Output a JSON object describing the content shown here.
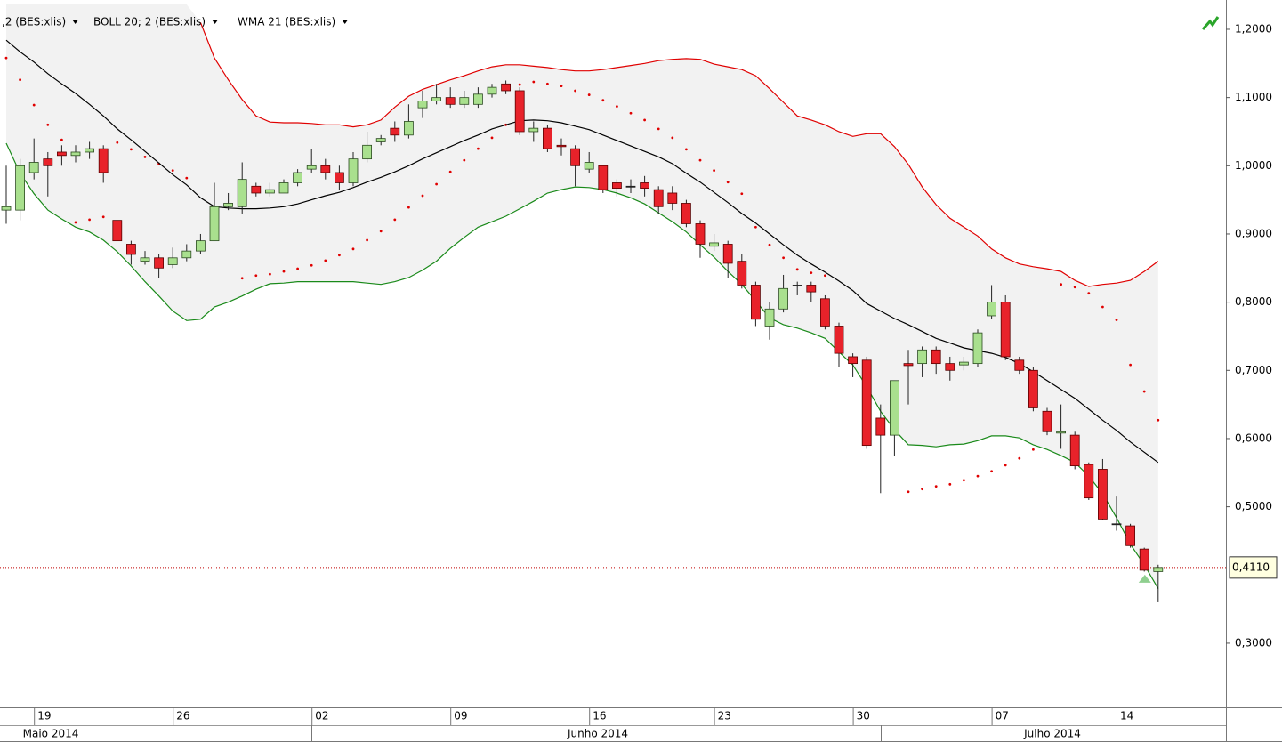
{
  "chart_data": {
    "type": "candlestick",
    "categories": [
      null,
      null,
      "19",
      null,
      null,
      null,
      null,
      null,
      null,
      null,
      null,
      null,
      "26",
      null,
      null,
      null,
      null,
      null,
      null,
      null,
      null,
      null,
      "02",
      null,
      null,
      null,
      null,
      null,
      null,
      null,
      null,
      null,
      "09",
      null,
      null,
      null,
      null,
      null,
      null,
      null,
      null,
      null,
      "16",
      null,
      null,
      null,
      null,
      null,
      null,
      null,
      null,
      "23",
      null,
      null,
      null,
      null,
      null,
      null,
      null,
      null,
      null,
      "30",
      null,
      null,
      null,
      null,
      null,
      null,
      null,
      null,
      null,
      "07",
      null,
      null,
      null,
      null,
      null,
      null,
      null,
      null,
      "14",
      null,
      null,
      null
    ],
    "open": [
      0.935,
      0.935,
      0.99,
      1.01,
      1.02,
      1.015,
      1.02,
      1.025,
      0.92,
      0.885,
      0.86,
      0.865,
      0.855,
      0.865,
      0.875,
      0.89,
      0.94,
      0.94,
      0.97,
      0.96,
      0.96,
      0.975,
      0.995,
      1.0,
      0.99,
      0.975,
      1.01,
      1.035,
      1.055,
      1.045,
      1.085,
      1.095,
      1.1,
      1.09,
      1.09,
      1.105,
      1.12,
      1.11,
      1.05,
      1.055,
      1.03,
      1.025,
      0.995,
      1.0,
      0.975,
      0.97,
      0.975,
      0.965,
      0.96,
      0.945,
      0.915,
      0.882,
      0.885,
      0.86,
      0.825,
      0.765,
      0.79,
      0.825,
      0.825,
      0.805,
      0.765,
      0.72,
      0.715,
      0.63,
      0.605,
      0.71,
      0.71,
      0.73,
      0.71,
      0.708,
      0.71,
      0.78,
      0.8,
      0.715,
      0.7,
      0.64,
      0.608,
      0.605,
      0.562,
      0.555,
      0.475,
      0.472,
      0.438,
      0.405
    ],
    "high": [
      1.0,
      1.01,
      1.04,
      1.02,
      1.03,
      1.03,
      1.035,
      1.03,
      0.92,
      0.89,
      0.875,
      0.87,
      0.88,
      0.885,
      0.9,
      0.975,
      0.96,
      1.005,
      0.975,
      0.975,
      0.98,
      0.995,
      1.025,
      1.01,
      1.0,
      1.02,
      1.05,
      1.045,
      1.065,
      1.09,
      1.11,
      1.12,
      1.115,
      1.11,
      1.115,
      1.12,
      1.125,
      1.115,
      1.065,
      1.06,
      1.04,
      1.03,
      1.02,
      1.0,
      0.98,
      0.98,
      0.985,
      0.97,
      0.97,
      0.95,
      0.92,
      0.9,
      0.89,
      0.87,
      0.83,
      0.8,
      0.84,
      0.83,
      0.83,
      0.81,
      0.77,
      0.725,
      0.72,
      0.65,
      0.685,
      0.73,
      0.735,
      0.735,
      0.72,
      0.72,
      0.76,
      0.825,
      0.81,
      0.72,
      0.705,
      0.645,
      0.65,
      0.61,
      0.565,
      0.57,
      0.515,
      0.475,
      0.44,
      0.415
    ],
    "low": [
      0.915,
      0.92,
      0.98,
      0.955,
      1.0,
      1.005,
      1.01,
      0.975,
      0.89,
      0.855,
      0.855,
      0.835,
      0.85,
      0.86,
      0.87,
      0.89,
      0.935,
      0.93,
      0.955,
      0.955,
      0.96,
      0.97,
      0.99,
      0.98,
      0.965,
      0.97,
      1.005,
      1.03,
      1.035,
      1.04,
      1.07,
      1.09,
      1.085,
      1.085,
      1.085,
      1.1,
      1.105,
      1.045,
      1.035,
      1.02,
      1.015,
      0.97,
      0.99,
      0.96,
      0.955,
      0.96,
      0.955,
      0.93,
      0.935,
      0.91,
      0.865,
      0.875,
      0.835,
      0.82,
      0.765,
      0.745,
      0.785,
      0.81,
      0.8,
      0.76,
      0.705,
      0.69,
      0.585,
      0.52,
      0.575,
      0.65,
      0.69,
      0.695,
      0.685,
      0.7,
      0.705,
      0.775,
      0.715,
      0.695,
      0.64,
      0.605,
      0.585,
      0.555,
      0.51,
      0.48,
      0.465,
      0.44,
      0.405,
      0.36
    ],
    "close": [
      0.94,
      1.0,
      1.005,
      1.0,
      1.015,
      1.02,
      1.025,
      0.99,
      0.89,
      0.87,
      0.865,
      0.85,
      0.865,
      0.875,
      0.89,
      0.94,
      0.945,
      0.98,
      0.96,
      0.965,
      0.975,
      0.99,
      1.0,
      0.99,
      0.975,
      1.01,
      1.03,
      1.04,
      1.045,
      1.065,
      1.095,
      1.1,
      1.09,
      1.1,
      1.105,
      1.115,
      1.11,
      1.05,
      1.055,
      1.025,
      1.028,
      1.0,
      1.005,
      0.965,
      0.967,
      0.97,
      0.967,
      0.94,
      0.945,
      0.915,
      0.885,
      0.887,
      0.857,
      0.825,
      0.775,
      0.79,
      0.82,
      0.825,
      0.815,
      0.765,
      0.725,
      0.71,
      0.59,
      0.605,
      0.685,
      0.707,
      0.73,
      0.71,
      0.7,
      0.712,
      0.755,
      0.8,
      0.72,
      0.7,
      0.645,
      0.61,
      0.61,
      0.56,
      0.513,
      0.482,
      0.475,
      0.443,
      0.407,
      0.411
    ],
    "up_color": "#a9e08e",
    "down_color": "#e8222a",
    "indicators": [
      {
        "name": ",2 (BES:xlis)",
        "label_color": "#e00000",
        "style": "dots",
        "color": "#e00000",
        "values": [
          1.158,
          1.126,
          1.089,
          1.06,
          1.038,
          0.917,
          0.921,
          0.925,
          1.034,
          1.024,
          1.013,
          1.003,
          0.993,
          0.982,
          null,
          null,
          null,
          0.835,
          0.839,
          0.841,
          0.845,
          0.849,
          0.854,
          0.861,
          0.869,
          0.878,
          0.891,
          0.904,
          0.921,
          0.939,
          0.956,
          0.973,
          0.991,
          1.008,
          1.025,
          1.041,
          1.06,
          1.119,
          1.123,
          1.12,
          1.117,
          1.11,
          1.104,
          1.096,
          1.087,
          1.077,
          1.067,
          1.054,
          1.041,
          1.024,
          1.008,
          0.993,
          0.976,
          0.959,
          0.91,
          0.884,
          0.865,
          0.848,
          0.843,
          0.839,
          null,
          null,
          null,
          null,
          null,
          0.522,
          0.526,
          0.53,
          0.533,
          0.539,
          0.545,
          0.552,
          0.561,
          0.571,
          0.584,
          null,
          0.826,
          0.822,
          0.813,
          0.793,
          0.774,
          0.708,
          0.669,
          0.627
        ]
      },
      {
        "name": "BOLL 20; 2 (BES:xlis)",
        "label_color": "#000000",
        "style": "bands",
        "upper_color": "#e00000",
        "lower_color": "#1a8a1a",
        "fill": "#f2f2f2",
        "upper": [
          null,
          null,
          null,
          null,
          null,
          null,
          null,
          null,
          null,
          null,
          null,
          null,
          null,
          null,
          1.21,
          1.158,
          1.126,
          1.097,
          1.073,
          1.064,
          1.063,
          1.063,
          1.062,
          1.06,
          1.06,
          1.057,
          1.06,
          1.067,
          1.086,
          1.102,
          1.112,
          1.119,
          1.126,
          1.132,
          1.139,
          1.145,
          1.148,
          1.148,
          1.146,
          1.144,
          1.141,
          1.139,
          1.139,
          1.141,
          1.144,
          1.147,
          1.15,
          1.154,
          1.156,
          1.157,
          1.156,
          1.149,
          1.145,
          1.141,
          1.132,
          1.113,
          1.093,
          1.073,
          1.067,
          1.06,
          1.05,
          1.043,
          1.047,
          1.047,
          1.028,
          1.002,
          0.969,
          0.943,
          0.923,
          0.91,
          0.897,
          0.878,
          0.865,
          0.856,
          0.852,
          0.849,
          0.845,
          0.832,
          0.823,
          0.826,
          0.828,
          0.832,
          0.845,
          0.86
        ],
        "lower": [
          1.033,
          0.989,
          0.959,
          0.935,
          0.922,
          0.91,
          0.903,
          0.891,
          0.874,
          0.853,
          0.83,
          0.809,
          0.787,
          0.773,
          0.775,
          0.793,
          0.8,
          0.809,
          0.819,
          0.827,
          0.828,
          0.83,
          0.83,
          0.83,
          0.83,
          0.83,
          0.828,
          0.826,
          0.83,
          0.836,
          0.847,
          0.86,
          0.879,
          0.895,
          0.91,
          0.918,
          0.926,
          0.937,
          0.948,
          0.96,
          0.965,
          0.969,
          0.968,
          0.965,
          0.96,
          0.953,
          0.944,
          0.931,
          0.918,
          0.903,
          0.884,
          0.866,
          0.845,
          0.826,
          0.802,
          0.777,
          0.767,
          0.762,
          0.755,
          0.747,
          0.727,
          0.708,
          0.676,
          0.64,
          0.613,
          0.591,
          0.59,
          0.588,
          0.591,
          0.592,
          0.597,
          0.604,
          0.604,
          0.601,
          0.591,
          0.584,
          0.575,
          0.565,
          0.545,
          0.519,
          0.484,
          0.445,
          0.415,
          0.38
        ]
      },
      {
        "name": "WMA 21 (BES:xlis)",
        "label_color": "#000000",
        "style": "line",
        "color": "#000000",
        "values": [
          1.184,
          1.167,
          1.152,
          1.135,
          1.12,
          1.106,
          1.09,
          1.073,
          1.054,
          1.038,
          1.021,
          1.004,
          0.987,
          0.972,
          0.953,
          0.94,
          0.938,
          0.937,
          0.937,
          0.938,
          0.94,
          0.944,
          0.95,
          0.956,
          0.961,
          0.968,
          0.976,
          0.983,
          0.991,
          1.0,
          1.01,
          1.019,
          1.028,
          1.037,
          1.045,
          1.054,
          1.06,
          1.066,
          1.067,
          1.066,
          1.063,
          1.058,
          1.053,
          1.045,
          1.037,
          1.029,
          1.021,
          1.013,
          1.003,
          0.989,
          0.976,
          0.961,
          0.946,
          0.93,
          0.916,
          0.9,
          0.884,
          0.869,
          0.856,
          0.844,
          0.831,
          0.817,
          0.798,
          0.787,
          0.776,
          0.767,
          0.757,
          0.747,
          0.74,
          0.733,
          0.729,
          0.725,
          0.719,
          0.71,
          0.698,
          0.685,
          0.672,
          0.659,
          0.643,
          0.627,
          0.612,
          0.595,
          0.58,
          0.565
        ]
      }
    ],
    "last_price": {
      "value": 0.411,
      "label": "0,4110"
    },
    "months": [
      "Maio 2014",
      "Junho 2014",
      "Julho 2014"
    ],
    "ylim": [
      0.206,
      1.2365
    ],
    "yticks": [
      {
        "value": 1.2,
        "label": "1,2000"
      },
      {
        "value": 1.1,
        "label": "1,1000"
      },
      {
        "value": 1.0,
        "label": "1,0000"
      },
      {
        "value": 0.9,
        "label": "0,9000"
      },
      {
        "value": 0.8,
        "label": "0,8000"
      },
      {
        "value": 0.7,
        "label": "0,7000"
      },
      {
        "value": 0.6,
        "label": "0,6000"
      },
      {
        "value": 0.5,
        "label": "0,5000"
      },
      {
        "value": 0.3,
        "label": "0,3000"
      }
    ],
    "grid": false
  }
}
